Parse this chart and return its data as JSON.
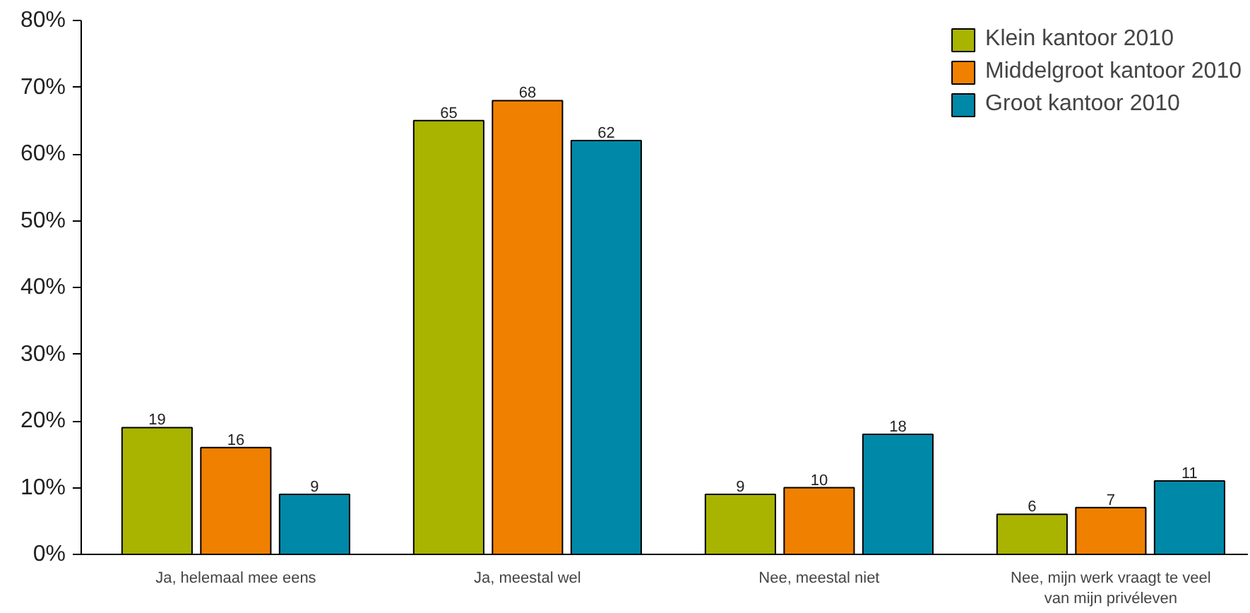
{
  "chart_data": {
    "type": "bar",
    "categories": [
      "Ja, helemaal mee eens",
      "Ja, meestal wel",
      "Nee, meestal niet",
      "Nee, mijn werk vraagt te veel van mijn privéleven"
    ],
    "series": [
      {
        "name": "Klein kantoor 2010",
        "color": "#a8b400",
        "values": [
          19,
          65,
          9,
          6
        ]
      },
      {
        "name": "Middelgroot kantoor 2010",
        "color": "#f08000",
        "values": [
          16,
          68,
          10,
          7
        ]
      },
      {
        "name": "Groot kantoor 2010",
        "color": "#0088a8",
        "values": [
          9,
          62,
          18,
          11
        ]
      }
    ],
    "ylim": [
      0,
      80
    ],
    "yticks": [
      {
        "value": 0,
        "label": "0%"
      },
      {
        "value": 10,
        "label": "10%"
      },
      {
        "value": 20,
        "label": "20%"
      },
      {
        "value": 30,
        "label": "30%"
      },
      {
        "value": 40,
        "label": "40%"
      },
      {
        "value": 50,
        "label": "50%"
      },
      {
        "value": 60,
        "label": "60%"
      },
      {
        "value": 70,
        "label": "70%"
      },
      {
        "value": 80,
        "label": "80%"
      }
    ],
    "data_labels": true,
    "legend": "top right",
    "grid": false
  }
}
